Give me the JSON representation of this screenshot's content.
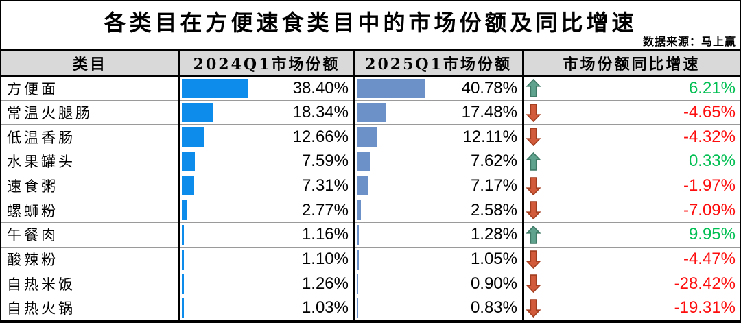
{
  "title": "各类目在方便速食类目中的市场份额及同比增速",
  "source_note": "数据来源：马上赢",
  "table": {
    "columns": [
      "类目",
      "2024Q1市场份额",
      "2025Q1市场份额",
      "市场份额同比增速"
    ],
    "rows": [
      {
        "category": "方便面",
        "share_2024": "38.40%",
        "share_2024_value": 38.4,
        "share_2025": "40.78%",
        "share_2025_value": 40.78,
        "yoy": "6.21%",
        "yoy_value": 6.21,
        "trend": "up"
      },
      {
        "category": "常温火腿肠",
        "share_2024": "18.34%",
        "share_2024_value": 18.34,
        "share_2025": "17.48%",
        "share_2025_value": 17.48,
        "yoy": "-4.65%",
        "yoy_value": -4.65,
        "trend": "down"
      },
      {
        "category": "低温香肠",
        "share_2024": "12.66%",
        "share_2024_value": 12.66,
        "share_2025": "12.11%",
        "share_2025_value": 12.11,
        "yoy": "-4.32%",
        "yoy_value": -4.32,
        "trend": "down"
      },
      {
        "category": "水果罐头",
        "share_2024": "7.59%",
        "share_2024_value": 7.59,
        "share_2025": "7.62%",
        "share_2025_value": 7.62,
        "yoy": "0.33%",
        "yoy_value": 0.33,
        "trend": "up"
      },
      {
        "category": "速食粥",
        "share_2024": "7.31%",
        "share_2024_value": 7.31,
        "share_2025": "7.17%",
        "share_2025_value": 7.17,
        "yoy": "-1.97%",
        "yoy_value": -1.97,
        "trend": "down"
      },
      {
        "category": "螺蛳粉",
        "share_2024": "2.77%",
        "share_2024_value": 2.77,
        "share_2025": "2.58%",
        "share_2025_value": 2.58,
        "yoy": "-7.09%",
        "yoy_value": -7.09,
        "trend": "down"
      },
      {
        "category": "午餐肉",
        "share_2024": "1.16%",
        "share_2024_value": 1.16,
        "share_2025": "1.28%",
        "share_2025_value": 1.28,
        "yoy": "9.95%",
        "yoy_value": 9.95,
        "trend": "up"
      },
      {
        "category": "酸辣粉",
        "share_2024": "1.10%",
        "share_2024_value": 1.1,
        "share_2025": "1.05%",
        "share_2025_value": 1.05,
        "yoy": "-4.47%",
        "yoy_value": -4.47,
        "trend": "down"
      },
      {
        "category": "自热米饭",
        "share_2024": "1.26%",
        "share_2024_value": 1.26,
        "share_2025": "0.90%",
        "share_2025_value": 0.9,
        "yoy": "-28.42%",
        "yoy_value": -28.42,
        "trend": "down"
      },
      {
        "category": "自热火锅",
        "share_2024": "1.03%",
        "share_2024_value": 1.03,
        "share_2025": "0.83%",
        "share_2025_value": 0.83,
        "yoy": "-19.31%",
        "yoy_value": -19.31,
        "trend": "down"
      }
    ]
  },
  "colors": {
    "bar_2024": "#0e8cec",
    "bar_2025": "#6b91c8",
    "up_arrow": "#5fa28d",
    "up_arrow_border": "#3f7a66",
    "down_arrow": "#d25b3b",
    "down_arrow_border": "#a33d1f",
    "positive_text": "#00bf52",
    "negative_text": "#fd0d0d",
    "header_bg": "#d9d9d9",
    "row_line": "#9a9a9a"
  },
  "chart_data": {
    "type": "table",
    "title": "各类目在方便速食类目中的市场份额及同比增速",
    "source": "数据来源：马上赢",
    "categories": [
      "方便面",
      "常温火腿肠",
      "低温香肠",
      "水果罐头",
      "速食粥",
      "螺蛳粉",
      "午餐肉",
      "酸辣粉",
      "自热米饭",
      "自热火锅"
    ],
    "series": [
      {
        "name": "2024Q1市场份额",
        "unit": "%",
        "values": [
          38.4,
          18.34,
          12.66,
          7.59,
          7.31,
          2.77,
          1.16,
          1.1,
          1.26,
          1.03
        ]
      },
      {
        "name": "2025Q1市场份额",
        "unit": "%",
        "values": [
          40.78,
          17.48,
          12.11,
          7.62,
          7.17,
          2.58,
          1.28,
          1.05,
          0.9,
          0.83
        ]
      },
      {
        "name": "市场份额同比增速",
        "unit": "%",
        "values": [
          6.21,
          -4.65,
          -4.32,
          0.33,
          -1.97,
          -7.09,
          9.95,
          -4.47,
          -28.42,
          -19.31
        ]
      }
    ],
    "layout": {
      "bars_in_cells": true,
      "bar_scale": "percent-of-cell-width",
      "trend_icons": [
        "up",
        "down",
        "down",
        "up",
        "down",
        "down",
        "up",
        "down",
        "down",
        "down"
      ]
    }
  }
}
